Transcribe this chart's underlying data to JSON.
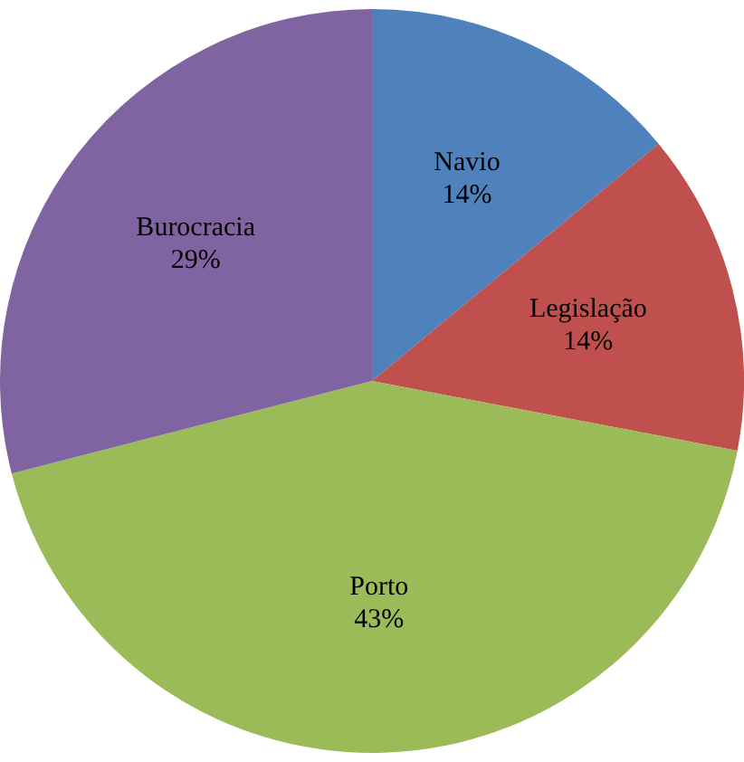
{
  "chart_data": {
    "type": "pie",
    "categories": [
      "Navio",
      "Legislação",
      "Porto",
      "Burocracia"
    ],
    "values": [
      14,
      14,
      43,
      29
    ],
    "value_labels": [
      "14%",
      "14%",
      "43%",
      "29%"
    ],
    "colors": [
      "#4f81bd",
      "#c0504d",
      "#9bbb59",
      "#8064a2"
    ],
    "legend": false
  }
}
